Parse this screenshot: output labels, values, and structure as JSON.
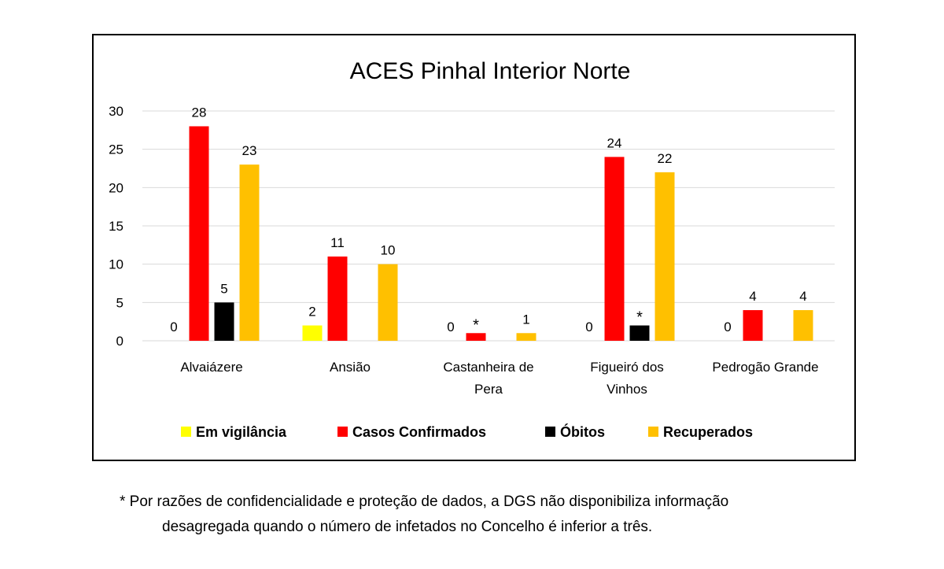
{
  "chart_data": {
    "type": "bar",
    "title": "ACES Pinhal Interior Norte",
    "categories": [
      [
        "Alvaiázere"
      ],
      [
        "Ansião"
      ],
      [
        "Castanheira de",
        "Pera"
      ],
      [
        "Figueiró dos",
        "Vinhos"
      ],
      [
        "Pedrogão Grande"
      ]
    ],
    "ylim": [
      0,
      30
    ],
    "yticks": [
      0,
      5,
      10,
      15,
      20,
      25,
      30
    ],
    "grid": true,
    "legend_position": "bottom",
    "series": [
      {
        "name": "Em vigilância",
        "color": "#FFFF00",
        "values": [
          0,
          2,
          0,
          0,
          0
        ],
        "labels": [
          "0",
          "2",
          "0",
          "0",
          "0"
        ]
      },
      {
        "name": "Casos Confirmados",
        "color": "#FF0000",
        "values": [
          28,
          11,
          1,
          24,
          4
        ],
        "labels": [
          "28",
          "11",
          "*",
          "24",
          "4"
        ]
      },
      {
        "name": "Óbitos",
        "color": "#000000",
        "values": [
          5,
          0,
          0,
          2,
          0
        ],
        "labels": [
          "5",
          "",
          "",
          "*",
          ""
        ]
      },
      {
        "name": "Recuperados",
        "color": "#FFC000",
        "values": [
          23,
          10,
          1,
          22,
          4
        ],
        "labels": [
          "23",
          "10",
          "1",
          "22",
          "4"
        ]
      }
    ]
  },
  "footnote": {
    "line1": "* Por razões de confidencialidade e proteção de dados, a DGS não disponibiliza informação",
    "line2": "desagregada quando o número de infetados no Concelho é inferior a três."
  }
}
